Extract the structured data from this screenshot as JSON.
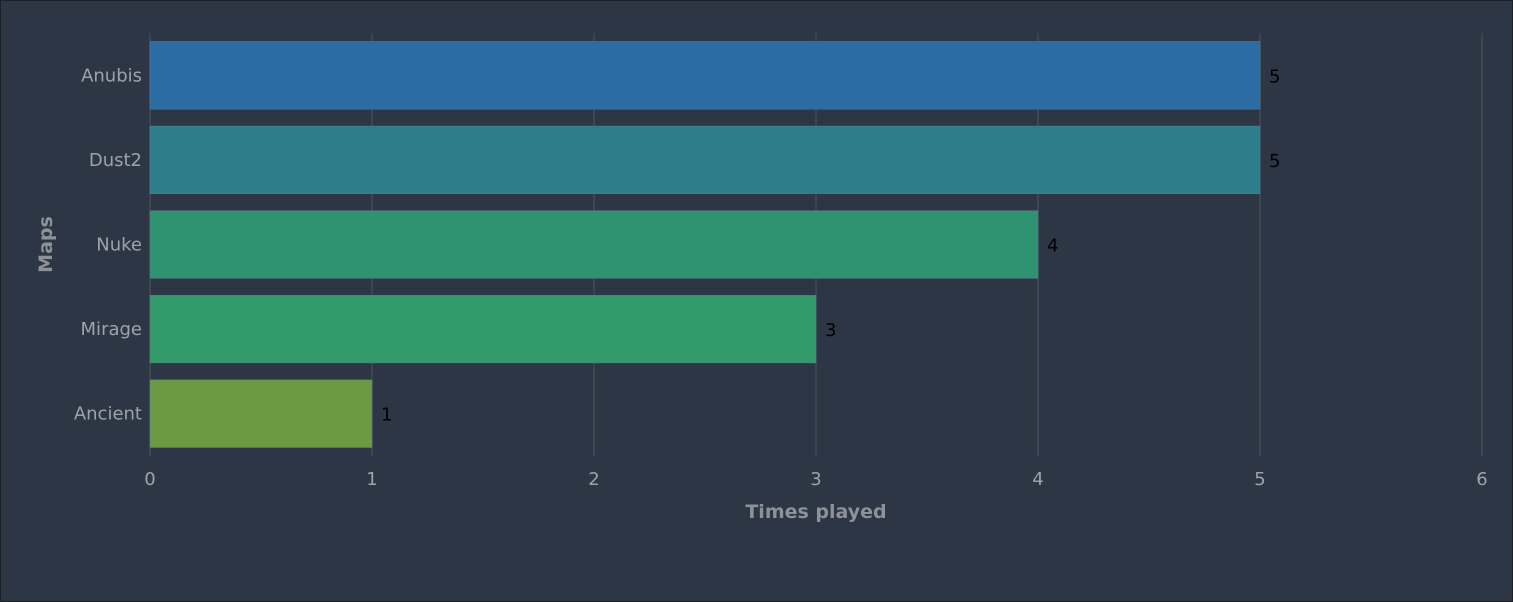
{
  "chart_data": {
    "type": "bar",
    "orientation": "horizontal",
    "categories": [
      "Anubis",
      "Dust2",
      "Nuke",
      "Mirage",
      "Ancient"
    ],
    "values": [
      5,
      5,
      4,
      3,
      1
    ],
    "bar_colors": [
      "#2c6ca4",
      "#2d7d8a",
      "#2f9371",
      "#339a6a",
      "#6b9944"
    ],
    "xlabel": "Times played",
    "ylabel": "Maps",
    "xlim": [
      0,
      6
    ],
    "x_ticks": [
      "0",
      "1",
      "2",
      "3",
      "4",
      "5",
      "6"
    ],
    "grid": true,
    "data_labels": [
      "5",
      "5",
      "4",
      "3",
      "1"
    ]
  },
  "theme": {
    "background": "#2d3644",
    "grid_color": "#414a57",
    "tick_label_color": "#9ea3aa",
    "axis_title_color": "#8d9299",
    "data_label_color": "#000000"
  }
}
